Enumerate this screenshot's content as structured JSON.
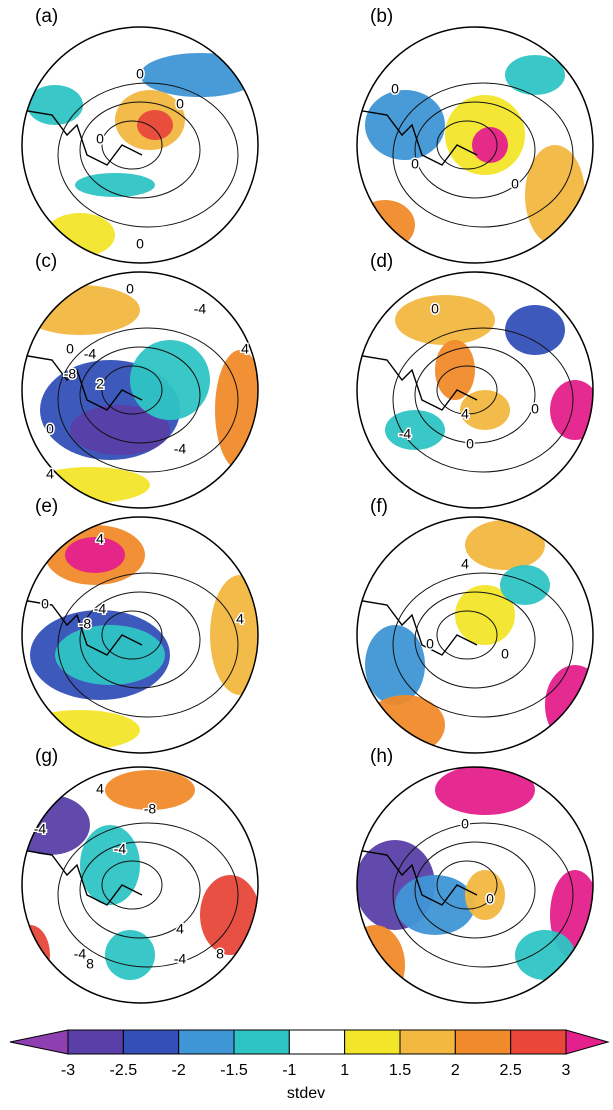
{
  "panels": [
    {
      "label": "(a)",
      "contour_labels": [
        "0",
        "0",
        "0",
        "0"
      ]
    },
    {
      "label": "(b)",
      "contour_labels": [
        "0",
        "0",
        "0"
      ]
    },
    {
      "label": "(c)",
      "contour_labels": [
        "0",
        "-4",
        "0",
        "-4",
        "-8",
        "2",
        "-4",
        "0",
        "4",
        "4"
      ]
    },
    {
      "label": "(d)",
      "contour_labels": [
        "0",
        "-4",
        "4",
        "0",
        "0"
      ]
    },
    {
      "label": "(e)",
      "contour_labels": [
        "4",
        "-4",
        "-8",
        "4",
        "0"
      ]
    },
    {
      "label": "(f)",
      "contour_labels": [
        "4",
        "0",
        "0"
      ]
    },
    {
      "label": "(g)",
      "contour_labels": [
        "4",
        "-8",
        "-4",
        "-4",
        "-4",
        "8",
        "-4",
        "8",
        "4"
      ]
    },
    {
      "label": "(h)",
      "contour_labels": [
        "0",
        "0"
      ]
    }
  ],
  "colorbar": {
    "ticks": [
      -3,
      -2.5,
      -2,
      -1.5,
      -1,
      1,
      1.5,
      2,
      2.5,
      3
    ],
    "colors": [
      "#8e3fb0",
      "#5a3fa8",
      "#3450b8",
      "#3f96d6",
      "#2ec4c4",
      "#ffffff",
      "#f2e52a",
      "#f2b840",
      "#f08a2a",
      "#e8473a",
      "#e4208c"
    ],
    "label": "stdev"
  }
}
